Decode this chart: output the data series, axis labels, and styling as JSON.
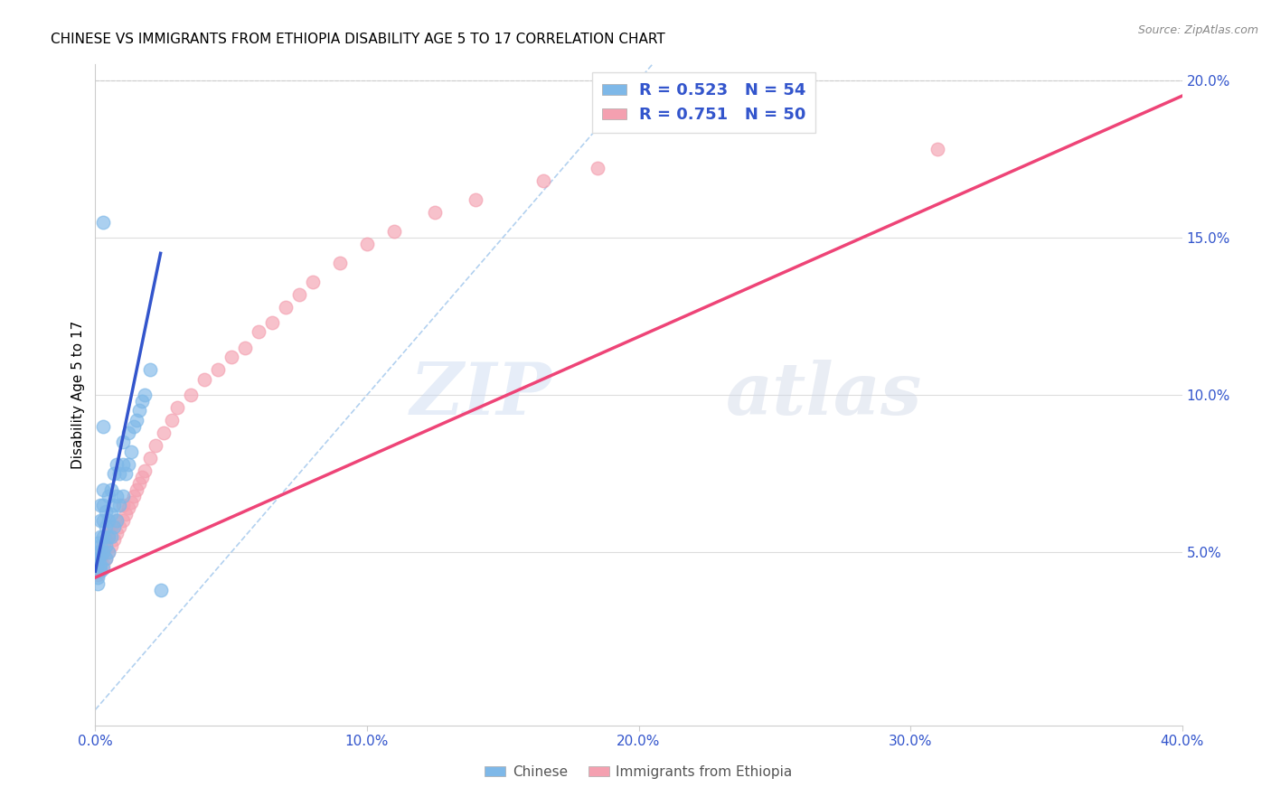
{
  "title": "CHINESE VS IMMIGRANTS FROM ETHIOPIA DISABILITY AGE 5 TO 17 CORRELATION CHART",
  "source": "Source: ZipAtlas.com",
  "ylabel": "Disability Age 5 to 17",
  "xlim": [
    0.0,
    0.4
  ],
  "ylim": [
    -0.005,
    0.205
  ],
  "xticks": [
    0.0,
    0.1,
    0.2,
    0.3,
    0.4
  ],
  "xtick_labels": [
    "0.0%",
    "10.0%",
    "20.0%",
    "30.0%",
    "40.0%"
  ],
  "yticks_right": [
    0.05,
    0.1,
    0.15,
    0.2
  ],
  "ytick_labels_right": [
    "5.0%",
    "10.0%",
    "15.0%",
    "20.0%"
  ],
  "legend_labels": [
    "Chinese",
    "Immigrants from Ethiopia"
  ],
  "chinese_R": 0.523,
  "chinese_N": 54,
  "ethiopia_R": 0.751,
  "ethiopia_N": 50,
  "chinese_color": "#7EB8E8",
  "ethiopia_color": "#F4A0B0",
  "chinese_line_color": "#3355CC",
  "ethiopia_line_color": "#EE4477",
  "diagonal_color": "#AACCEE",
  "watermark_zip": "ZIP",
  "watermark_atlas": "atlas",
  "chinese_x": [
    0.001,
    0.001,
    0.001,
    0.001,
    0.002,
    0.002,
    0.002,
    0.002,
    0.002,
    0.002,
    0.002,
    0.003,
    0.003,
    0.003,
    0.003,
    0.003,
    0.003,
    0.003,
    0.004,
    0.004,
    0.004,
    0.004,
    0.005,
    0.005,
    0.005,
    0.005,
    0.006,
    0.006,
    0.006,
    0.007,
    0.007,
    0.007,
    0.008,
    0.008,
    0.008,
    0.009,
    0.009,
    0.01,
    0.01,
    0.01,
    0.011,
    0.012,
    0.012,
    0.013,
    0.014,
    0.015,
    0.016,
    0.017,
    0.018,
    0.02,
    0.001,
    0.001,
    0.024,
    0.003
  ],
  "chinese_y": [
    0.046,
    0.048,
    0.05,
    0.053,
    0.044,
    0.046,
    0.049,
    0.052,
    0.055,
    0.06,
    0.065,
    0.045,
    0.05,
    0.055,
    0.06,
    0.065,
    0.07,
    0.09,
    0.048,
    0.052,
    0.058,
    0.063,
    0.05,
    0.055,
    0.06,
    0.068,
    0.055,
    0.062,
    0.07,
    0.058,
    0.065,
    0.075,
    0.06,
    0.068,
    0.078,
    0.065,
    0.075,
    0.068,
    0.078,
    0.085,
    0.075,
    0.078,
    0.088,
    0.082,
    0.09,
    0.092,
    0.095,
    0.098,
    0.1,
    0.108,
    0.04,
    0.042,
    0.038,
    0.155
  ],
  "ethiopia_x": [
    0.001,
    0.001,
    0.002,
    0.002,
    0.003,
    0.003,
    0.004,
    0.004,
    0.005,
    0.005,
    0.006,
    0.006,
    0.007,
    0.008,
    0.008,
    0.009,
    0.01,
    0.01,
    0.011,
    0.012,
    0.013,
    0.014,
    0.015,
    0.016,
    0.017,
    0.018,
    0.02,
    0.022,
    0.025,
    0.028,
    0.03,
    0.035,
    0.04,
    0.045,
    0.05,
    0.055,
    0.06,
    0.065,
    0.07,
    0.075,
    0.08,
    0.09,
    0.1,
    0.11,
    0.125,
    0.14,
    0.165,
    0.185,
    0.31,
    0.002
  ],
  "ethiopia_y": [
    0.043,
    0.048,
    0.045,
    0.05,
    0.046,
    0.052,
    0.048,
    0.054,
    0.05,
    0.056,
    0.052,
    0.058,
    0.054,
    0.056,
    0.06,
    0.058,
    0.06,
    0.065,
    0.062,
    0.064,
    0.066,
    0.068,
    0.07,
    0.072,
    0.074,
    0.076,
    0.08,
    0.084,
    0.088,
    0.092,
    0.096,
    0.1,
    0.105,
    0.108,
    0.112,
    0.115,
    0.12,
    0.123,
    0.128,
    0.132,
    0.136,
    0.142,
    0.148,
    0.152,
    0.158,
    0.162,
    0.168,
    0.172,
    0.178,
    0.048
  ],
  "chinese_line_x": [
    0.0,
    0.024
  ],
  "chinese_line_y": [
    0.044,
    0.145
  ],
  "ethiopia_line_x": [
    0.0,
    0.4
  ],
  "ethiopia_line_y": [
    0.042,
    0.195
  ],
  "diag_line_x": [
    0.0,
    0.205
  ],
  "diag_line_y": [
    0.0,
    0.205
  ]
}
